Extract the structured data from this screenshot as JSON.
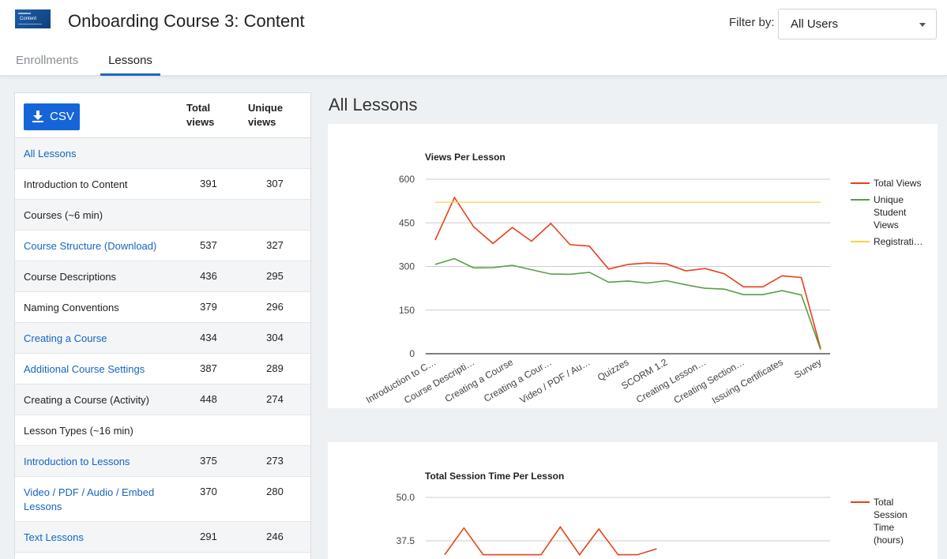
{
  "header": {
    "title": "Onboarding Course 3: Content",
    "thumbnail_text": "Content",
    "filter_label": "Filter by:",
    "filter_value": "All Users"
  },
  "tabs": [
    {
      "label": "Enrollments",
      "active": false
    },
    {
      "label": "Lessons",
      "active": true
    }
  ],
  "table": {
    "csv_label": "CSV",
    "columns": [
      "Total views",
      "Unique views"
    ],
    "rows": [
      {
        "name": "All Lessons",
        "total": "",
        "unique": "",
        "link": true
      },
      {
        "name": "Introduction to Content",
        "total": "391",
        "unique": "307",
        "link": false
      },
      {
        "name": "Courses (~6 min)",
        "total": "",
        "unique": "",
        "link": false
      },
      {
        "name": "Course Structure (Download)",
        "total": "537",
        "unique": "327",
        "link": true
      },
      {
        "name": "Course Descriptions",
        "total": "436",
        "unique": "295",
        "link": false
      },
      {
        "name": "Naming Conventions",
        "total": "379",
        "unique": "296",
        "link": false
      },
      {
        "name": "Creating a Course",
        "total": "434",
        "unique": "304",
        "link": true
      },
      {
        "name": "Additional Course Settings",
        "total": "387",
        "unique": "289",
        "link": true
      },
      {
        "name": "Creating a Course (Activity)",
        "total": "448",
        "unique": "274",
        "link": false
      },
      {
        "name": "Lesson Types (~16 min)",
        "total": "",
        "unique": "",
        "link": false
      },
      {
        "name": "Introduction to Lessons",
        "total": "375",
        "unique": "273",
        "link": true
      },
      {
        "name": "Video / PDF / Audio / Embed Lessons",
        "total": "370",
        "unique": "280",
        "link": true
      },
      {
        "name": "Text Lessons",
        "total": "291",
        "unique": "246",
        "link": true
      }
    ]
  },
  "main": {
    "section_title": "All Lessons"
  },
  "colors": {
    "accent": "#1565d8",
    "total_views": "#e8401c",
    "unique_views": "#5a9e45",
    "registrations": "#f2d44a"
  },
  "chart_data": [
    {
      "type": "line",
      "title": "Views Per Lesson",
      "ylim": [
        0,
        600
      ],
      "yticks": [
        "0",
        "150",
        "300",
        "450",
        "600"
      ],
      "x_tick_labels": [
        "Introduction to C…",
        "Course Descripti…",
        "Creating a Course",
        "Creating a Cour…",
        "Video / PDF / Au…",
        "Quizzes",
        "SCORM 1.2",
        "Creating Lesson…",
        "Creating Section…",
        "Issuing Certificates",
        "Survey"
      ],
      "grid": true,
      "legend": "right",
      "series": [
        {
          "name": "Total Views",
          "color": "#e8401c",
          "values": [
            391,
            537,
            436,
            379,
            434,
            387,
            448,
            375,
            370,
            291,
            307,
            312,
            309,
            285,
            293,
            275,
            230,
            230,
            268,
            262,
            18
          ]
        },
        {
          "name": "Unique Student Views",
          "color": "#5a9e45",
          "values": [
            307,
            327,
            295,
            296,
            304,
            289,
            274,
            273,
            280,
            246,
            250,
            243,
            251,
            237,
            225,
            222,
            203,
            203,
            217,
            202,
            14
          ]
        },
        {
          "name": "Registrati…",
          "color": "#f2d44a",
          "values": [
            521,
            521,
            521,
            521,
            521,
            521,
            521,
            521,
            521,
            521,
            521,
            521,
            521,
            521,
            521,
            521,
            521,
            521,
            521,
            521,
            521
          ]
        }
      ]
    },
    {
      "type": "line",
      "title": "Total Session Time Per Lesson",
      "yticks": [
        "37.5",
        "50.0"
      ],
      "grid": true,
      "legend": "right",
      "series": [
        {
          "name": "Total Session Time (hours)",
          "color": "#e8401c",
          "values": [
            33.5,
            41.2,
            33.5,
            33.5,
            33.5,
            33.5,
            41.5,
            33.5,
            40.9,
            33.5,
            33.5,
            35.2
          ]
        }
      ]
    }
  ]
}
